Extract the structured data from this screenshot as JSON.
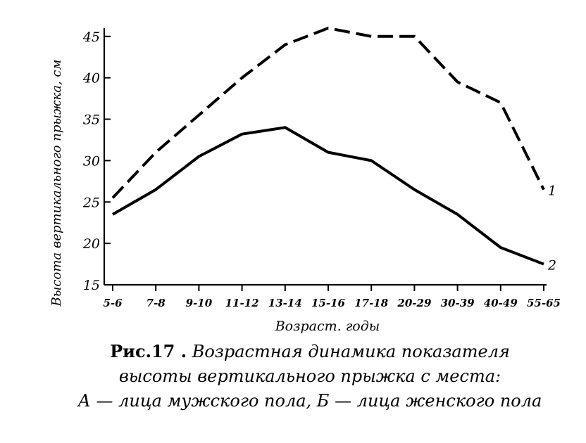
{
  "caption": {
    "fig_label": "Рис.17 .",
    "line1": "Возрастная динамика показателя",
    "line2": "высоты вертикального прыжка с места:",
    "line3": "А — лица мужского пола, Б — лица женского пола"
  },
  "chart_data": {
    "type": "line",
    "title": "",
    "xlabel": "Возраст. годы",
    "ylabel": "Высота вертикального прыжка, см",
    "categories": [
      "5-6",
      "7-8",
      "9-10",
      "11-12",
      "13-14",
      "15-16",
      "17-18",
      "20-29",
      "30-39",
      "40-49",
      "55-65"
    ],
    "ylim": [
      15,
      46
    ],
    "yticks": [
      15,
      20,
      25,
      30,
      35,
      40,
      45
    ],
    "grid": false,
    "series": [
      {
        "name": "1",
        "style": "dashed",
        "color": "#000000",
        "values": [
          25.5,
          31,
          35.5,
          40,
          44,
          46,
          45,
          45,
          39.5,
          37,
          26.5
        ]
      },
      {
        "name": "2",
        "style": "solid",
        "color": "#000000",
        "values": [
          23.5,
          26.5,
          30.5,
          33.2,
          34,
          31,
          30,
          26.5,
          23.5,
          19.5,
          17.5
        ]
      }
    ]
  }
}
